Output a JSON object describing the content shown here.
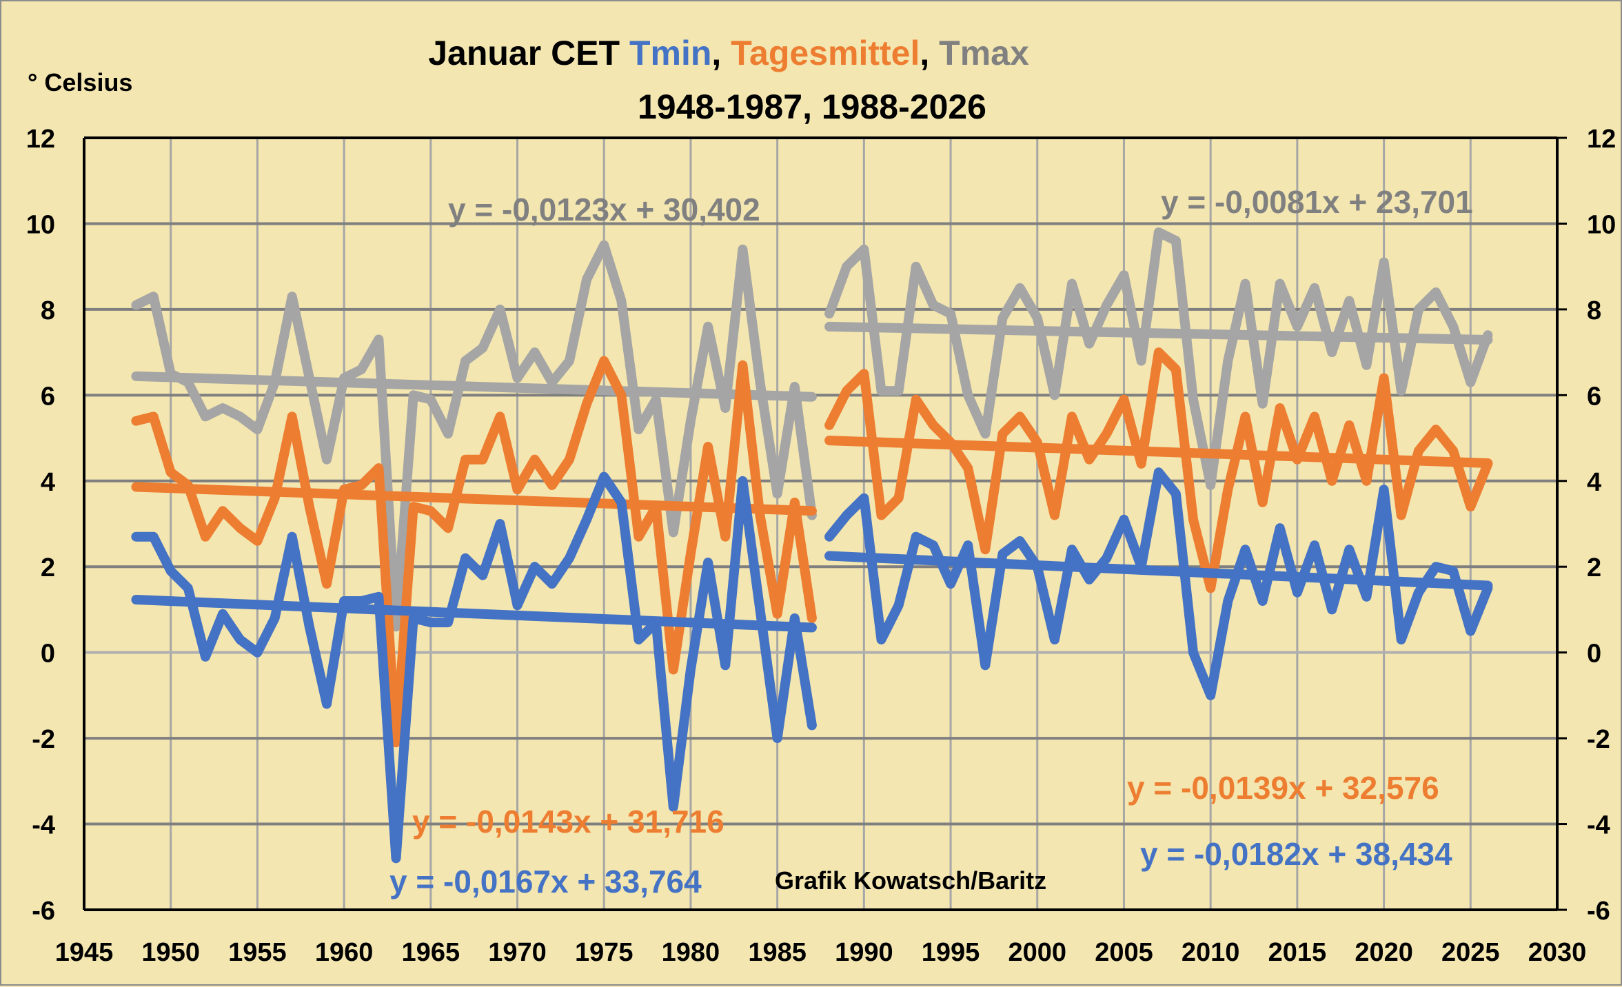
{
  "chart_data": {
    "type": "line",
    "title_parts": [
      {
        "text": "Januar CET ",
        "color": "#000000"
      },
      {
        "text": "Tmin",
        "color": "#4472c4"
      },
      {
        "text": ", ",
        "color": "#000000"
      },
      {
        "text": "Tagesmittel",
        "color": "#ed7d31"
      },
      {
        "text": ", ",
        "color": "#000000"
      },
      {
        "text": "Tmax",
        "color": "#808080"
      }
    ],
    "subtitle": "1948-1987, 1988-2026",
    "ylabel": "° Celsius",
    "xlabel": "",
    "credit": "Grafik Kowatsch/Baritz",
    "xlim": [
      1945,
      2030
    ],
    "ylim": [
      -6,
      12
    ],
    "x_ticks": [
      1945,
      1950,
      1955,
      1960,
      1965,
      1970,
      1975,
      1980,
      1985,
      1990,
      1995,
      2000,
      2005,
      2010,
      2015,
      2020,
      2025,
      2030
    ],
    "y_ticks": [
      12,
      10,
      8,
      6,
      4,
      2,
      0,
      -2,
      -4,
      -6
    ],
    "grid": true,
    "legend": "none",
    "periods": [
      {
        "name": "1948-1987",
        "x_start": 1948,
        "series": [
          {
            "name": "Tmax",
            "color": "#a5a5a5",
            "values": [
              8.1,
              8.3,
              6.5,
              6.3,
              5.5,
              5.7,
              5.5,
              5.2,
              6.3,
              8.3,
              6.4,
              4.5,
              6.4,
              6.6,
              7.3,
              0.6,
              6.0,
              5.9,
              5.1,
              6.8,
              7.1,
              8.0,
              6.4,
              7.0,
              6.3,
              6.8,
              8.7,
              9.5,
              8.2,
              5.2,
              5.9,
              2.8,
              5.4,
              7.6,
              5.7,
              9.4,
              6.3,
              3.7,
              6.2,
              3.2
            ],
            "trend": {
              "slope": -0.0123,
              "intercept": 30.402,
              "label": "y = -0,0123x + 30,402",
              "label_color": "#808080"
            }
          },
          {
            "name": "Tagesmittel",
            "color": "#ed7d31",
            "values": [
              5.4,
              5.5,
              4.2,
              3.9,
              2.7,
              3.3,
              2.9,
              2.6,
              3.6,
              5.5,
              3.4,
              1.6,
              3.8,
              3.9,
              4.3,
              -2.1,
              3.4,
              3.3,
              2.9,
              4.5,
              4.5,
              5.5,
              3.8,
              4.5,
              3.9,
              4.5,
              5.8,
              6.8,
              6.0,
              2.7,
              3.4,
              -0.4,
              2.3,
              4.8,
              2.7,
              6.7,
              3.2,
              0.9,
              3.5,
              0.8
            ],
            "trend": {
              "slope": -0.0143,
              "intercept": 31.716,
              "label": "y = -0,0143x + 31,716",
              "label_color": "#ed7d31"
            }
          },
          {
            "name": "Tmin",
            "color": "#4472c4",
            "values": [
              2.7,
              2.7,
              1.9,
              1.5,
              -0.1,
              0.9,
              0.3,
              0.0,
              0.8,
              2.7,
              0.6,
              -1.2,
              1.2,
              1.2,
              1.3,
              -4.8,
              0.8,
              0.7,
              0.7,
              2.2,
              1.8,
              3.0,
              1.1,
              2.0,
              1.6,
              2.2,
              3.1,
              4.1,
              3.5,
              0.3,
              0.7,
              -3.6,
              -0.4,
              2.1,
              -0.3,
              4.0,
              1.0,
              -2.0,
              0.8,
              -1.7
            ],
            "trend": {
              "slope": -0.0167,
              "intercept": 33.764,
              "label": "y = -0,0167x + 33,764",
              "label_color": "#4472c4"
            }
          }
        ]
      },
      {
        "name": "1988-2026",
        "x_start": 1988,
        "series": [
          {
            "name": "Tmax",
            "color": "#a5a5a5",
            "values": [
              7.9,
              9.0,
              9.4,
              6.1,
              6.1,
              9.0,
              8.1,
              7.9,
              6.0,
              5.1,
              7.8,
              8.5,
              7.8,
              6.0,
              8.6,
              7.2,
              8.1,
              8.8,
              6.8,
              9.8,
              9.6,
              5.9,
              3.9,
              6.8,
              8.6,
              5.8,
              8.6,
              7.6,
              8.5,
              7.0,
              8.2,
              6.7,
              9.1,
              6.1,
              8.0,
              8.4,
              7.6,
              6.3,
              7.4
            ],
            "trend": {
              "slope": -0.0081,
              "intercept": 23.701,
              "label": "y = -0,0081x + 23,701",
              "label_color": "#808080"
            }
          },
          {
            "name": "Tagesmittel",
            "color": "#ed7d31",
            "values": [
              5.3,
              6.1,
              6.5,
              3.2,
              3.6,
              5.9,
              5.3,
              4.9,
              4.3,
              2.4,
              5.1,
              5.5,
              4.9,
              3.2,
              5.5,
              4.5,
              5.1,
              5.9,
              4.4,
              7.0,
              6.6,
              3.1,
              1.5,
              3.8,
              5.5,
              3.5,
              5.7,
              4.5,
              5.5,
              4.0,
              5.3,
              4.0,
              6.4,
              3.2,
              4.7,
              5.2,
              4.7,
              3.4,
              4.4
            ],
            "trend": {
              "slope": -0.0139,
              "intercept": 32.576,
              "label": "y = -0,0139x + 32,576",
              "label_color": "#ed7d31"
            }
          },
          {
            "name": "Tmin",
            "color": "#4472c4",
            "values": [
              2.7,
              3.2,
              3.6,
              0.3,
              1.1,
              2.7,
              2.5,
              1.6,
              2.5,
              -0.3,
              2.3,
              2.6,
              2.0,
              0.3,
              2.4,
              1.7,
              2.2,
              3.1,
              2.0,
              4.2,
              3.7,
              0.0,
              -1.0,
              1.2,
              2.4,
              1.2,
              2.9,
              1.4,
              2.5,
              1.0,
              2.4,
              1.3,
              3.8,
              0.3,
              1.4,
              2.0,
              1.9,
              0.5,
              1.5
            ],
            "trend": {
              "slope": -0.0182,
              "intercept": 38.434,
              "label": "y = -0,0182x + 38,434",
              "label_color": "#4472c4"
            }
          }
        ]
      }
    ]
  }
}
